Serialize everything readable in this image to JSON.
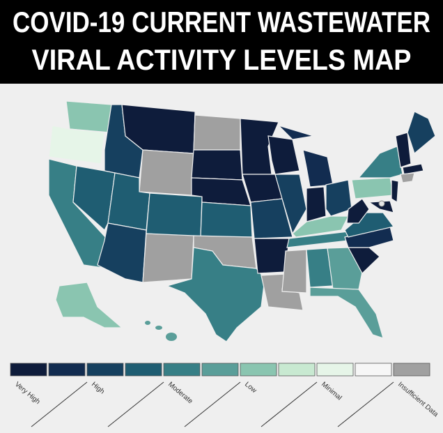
{
  "header": {
    "title_lines": [
      "COVID-19 CURRENT WASTEWATER",
      "VIRAL ACTIVITY LEVELS MAP"
    ]
  },
  "legend": {
    "swatch_colors": [
      "#0e1c3b",
      "#122c50",
      "#16405f",
      "#1f5d72",
      "#377f86",
      "#5a9e99",
      "#8ac5b0",
      "#c8e9d1",
      "#e6f5e8",
      "#f6f6f6",
      "#a0a0a0"
    ],
    "labels": [
      "Very High",
      "High",
      "Moderate",
      "Low",
      "Minimal",
      "Insufficient Data"
    ]
  }
}
